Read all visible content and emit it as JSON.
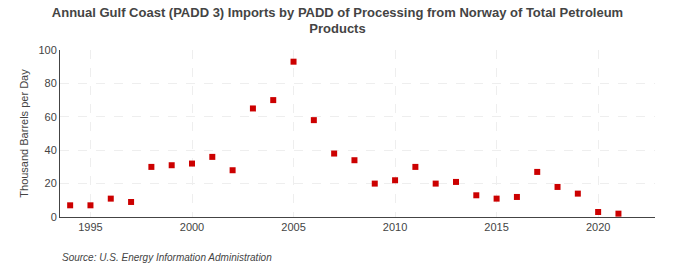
{
  "chart_data": {
    "type": "scatter",
    "title": "Annual Gulf Coast (PADD 3) Imports by PADD of Processing from Norway of Total Petroleum\nProducts",
    "y_label": "Thousand Barrels per Day",
    "annotations": [
      "Source: U.S. Energy Information Administration"
    ],
    "x": [
      1994,
      1995,
      1996,
      1997,
      1998,
      1999,
      2000,
      2001,
      2002,
      2003,
      2004,
      2005,
      2006,
      2007,
      2008,
      2009,
      2010,
      2011,
      2012,
      2013,
      2014,
      2015,
      2016,
      2017,
      2018,
      2019,
      2020,
      2021
    ],
    "values": [
      7,
      7,
      11,
      9,
      30,
      31,
      32,
      36,
      28,
      65,
      70,
      93,
      58,
      38,
      34,
      20,
      22,
      30,
      20,
      21,
      13,
      11,
      12,
      27,
      18,
      14,
      3,
      2
    ],
    "color": "#cc0000",
    "marker": "square",
    "xlim": [
      1993.5,
      2022.8
    ],
    "ylim": [
      0,
      100
    ],
    "xticks": [
      1995,
      2000,
      2005,
      2010,
      2015,
      2020
    ],
    "yticks": [
      0,
      20,
      40,
      60,
      80,
      100
    ],
    "grid": true
  }
}
